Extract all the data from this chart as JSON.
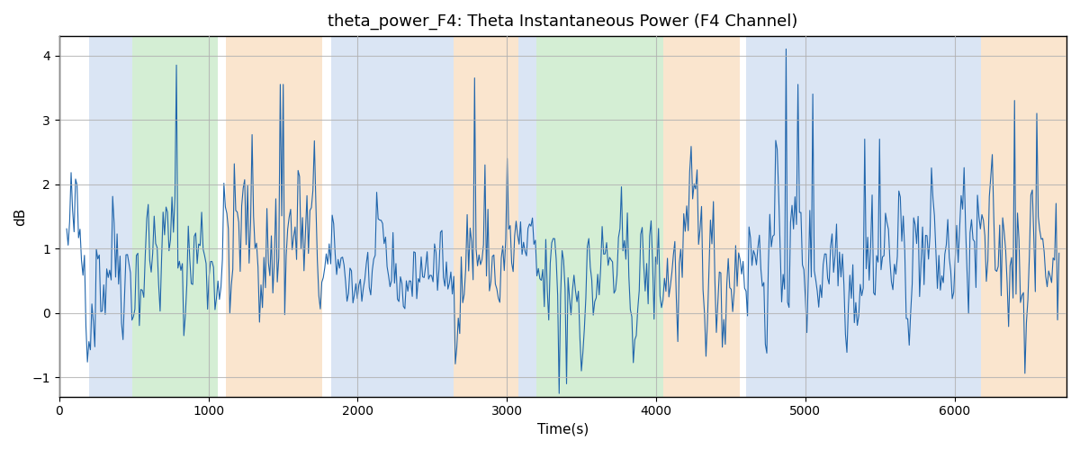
{
  "title": "theta_power_F4: Theta Instantaneous Power (F4 Channel)",
  "xlabel": "Time(s)",
  "ylabel": "dB",
  "xlim": [
    0,
    6750
  ],
  "ylim": [
    -1.3,
    4.3
  ],
  "yticks": [
    -1,
    0,
    1,
    2,
    3,
    4
  ],
  "line_color": "#2166ac",
  "line_width": 0.8,
  "bg_color": "white",
  "grid_color": "#b0b0b0",
  "bands": [
    {
      "start": 200,
      "end": 490,
      "color": "#aec6e8",
      "alpha": 0.45
    },
    {
      "start": 490,
      "end": 1060,
      "color": "#90d490",
      "alpha": 0.38
    },
    {
      "start": 1120,
      "end": 1760,
      "color": "#f5c99a",
      "alpha": 0.48
    },
    {
      "start": 1820,
      "end": 2640,
      "color": "#aec6e8",
      "alpha": 0.45
    },
    {
      "start": 2640,
      "end": 3080,
      "color": "#f5c99a",
      "alpha": 0.48
    },
    {
      "start": 3080,
      "end": 3200,
      "color": "#aec6e8",
      "alpha": 0.45
    },
    {
      "start": 3200,
      "end": 4050,
      "color": "#90d490",
      "alpha": 0.38
    },
    {
      "start": 4050,
      "end": 4560,
      "color": "#f5c99a",
      "alpha": 0.48
    },
    {
      "start": 4600,
      "end": 6180,
      "color": "#aec6e8",
      "alpha": 0.45
    },
    {
      "start": 6180,
      "end": 6750,
      "color": "#f5c99a",
      "alpha": 0.48
    }
  ],
  "seed": 42,
  "n_points": 670,
  "t_start": 50,
  "t_end": 6700
}
